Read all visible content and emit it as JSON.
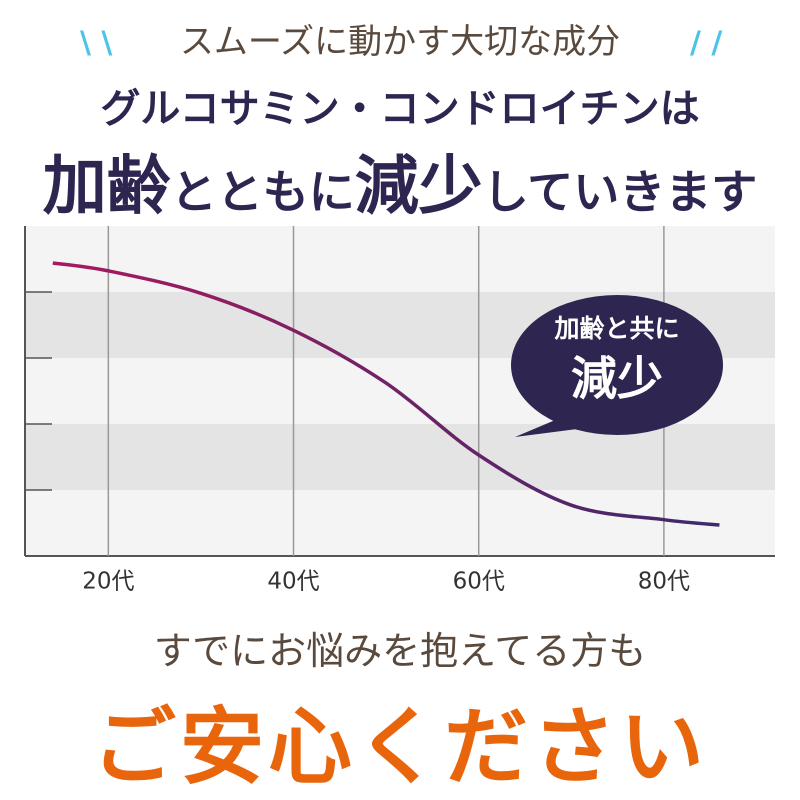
{
  "header": {
    "line1": "スムーズに動かす大切な成分",
    "line2": "グルコサミン・コンドロイチンは",
    "line3": [
      "加齢",
      "とともに",
      "減少",
      "していきます"
    ]
  },
  "chart_data": {
    "type": "line",
    "x": [
      14,
      20,
      30,
      40,
      50,
      60,
      70,
      80,
      86
    ],
    "series": [
      {
        "color": "#a8195f",
        "color_end": "#3b2a6c",
        "values": [
          4.44,
          4.32,
          3.98,
          3.42,
          2.62,
          1.53,
          0.77,
          0.55,
          0.47
        ]
      }
    ],
    "xlim": [
      11,
      92
    ],
    "ylim": [
      0,
      5
    ],
    "xticks": [
      {
        "value": 20,
        "label": "20代"
      },
      {
        "value": 40,
        "label": "40代"
      },
      {
        "value": 60,
        "label": "60代"
      },
      {
        "value": 80,
        "label": "80代"
      }
    ],
    "grid": true
  },
  "bubble": {
    "line1": "加齢と共に",
    "line2": "減少"
  },
  "footer": {
    "line1": "すでにお悩みを抱えてる方も",
    "line2": "ご安心ください"
  }
}
